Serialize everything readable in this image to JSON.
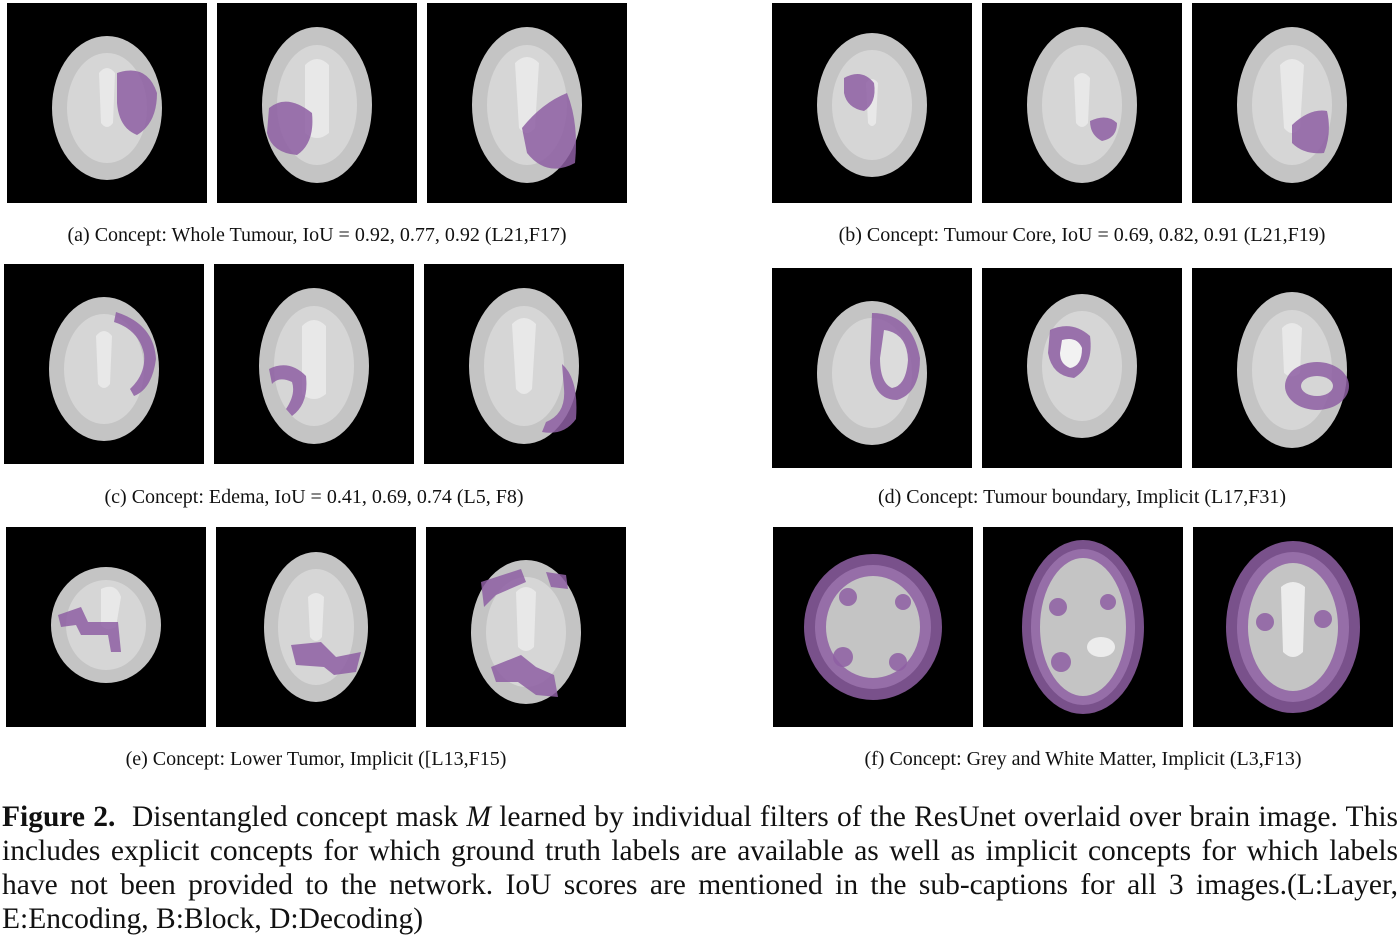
{
  "panels": [
    {
      "label": "(a) Concept: Whole Tumour, IoU = 0.92, 0.77, 0.92 (L21,F17)"
    },
    {
      "label": "(b) Concept: Tumour Core, IoU = 0.69, 0.82, 0.91 (L21,F19)"
    },
    {
      "label": "(c) Concept: Edema, IoU = 0.41, 0.69, 0.74 (L5, F8)"
    },
    {
      "label": "(d) Concept: Tumour boundary, Implicit (L17,F31)"
    },
    {
      "label": "(e) Concept: Lower Tumor, Implicit ([L13,F15)"
    },
    {
      "label": "(f) Concept: Grey and White Matter, Implicit (L3,F13)"
    }
  ],
  "caption": {
    "figure_label": "Figure 2.",
    "text_before_symbol": "Disentangled concept mask ",
    "symbol": "M",
    "text_after_symbol": " learned by individual filters of the ResUnet overlaid over brain image. This includes explicit concepts for which ground truth labels are available as well as implicit concepts for which labels have not been provided to the network. IoU scores are mentioned in the sub-captions for all 3 images.(L:Layer, E:Encoding, B:Block, D:Decoding)"
  },
  "colors": {
    "overlay": "#8e5fa3",
    "background": "#000000",
    "brain": "#c8c8c8"
  }
}
